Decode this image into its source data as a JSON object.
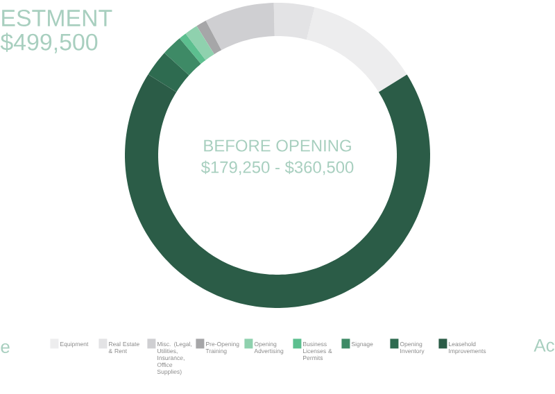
{
  "chart_data": {
    "type": "donut",
    "title": "BEFORE OPENING",
    "subtitle": "$179,250 - $360,500",
    "categories": [
      "Equipment",
      "Real Estate & Rent",
      "Misc. (Legal, Utilities, Insurance, Office Supplies)",
      "Pre-Opening Training",
      "Opening Advertising",
      "Business Licenses & Permits",
      "Signage",
      "Opening Inventory",
      "Leasehold Improvements"
    ],
    "values": [
      12.2,
      4.3,
      7.4,
      1.1,
      1.4,
      0.8,
      2.2,
      2.8,
      67.8
    ],
    "colors": [
      "#ededee",
      "#e3e3e5",
      "#cfcfd2",
      "#a6a6a8",
      "#8fd1ae",
      "#5cbf8f",
      "#3e8a66",
      "#2e6b50",
      "#2b5c47"
    ],
    "legend": "bottom",
    "annotations": [
      "ESTMENT",
      "$499,500",
      "e",
      "Ac"
    ]
  }
}
